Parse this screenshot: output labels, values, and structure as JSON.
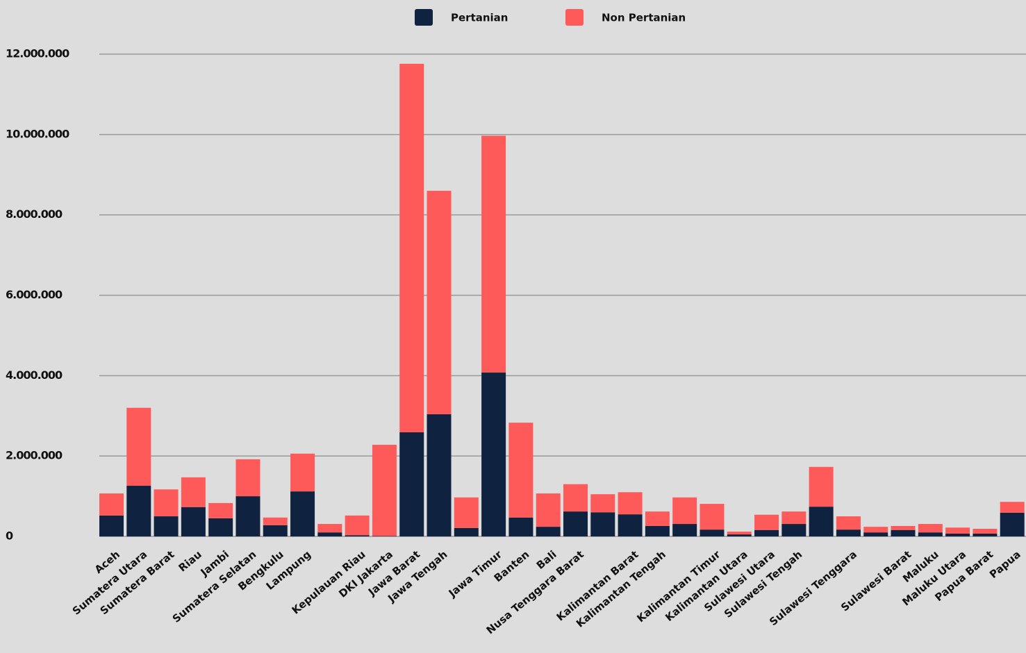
{
  "chart_data": {
    "type": "stacked_bar",
    "categories": [
      "Aceh",
      "Sumatera Utara",
      "Sumatera Barat",
      "Riau",
      "Jambi",
      "Sumatera Selatan",
      "Bengkulu",
      "Lampung",
      null,
      "Kepulauan Riau",
      "DKI Jakarta",
      "Jawa Barat",
      "Jawa Tengah",
      null,
      "Jawa Timur",
      "Banten",
      "Bali",
      "Nusa Tenggara Barat",
      null,
      "Kalimantan Barat",
      "Kalimantan Tengah",
      null,
      "Kalimantan Timur",
      "Kalimantan Utara",
      "Sulawesi Utara",
      "Sulawesi Tengah",
      null,
      "Sulawesi Tenggara",
      null,
      "Sulawesi Barat",
      "Maluku",
      "Maluku Utara",
      "Papua Barat",
      "Papua"
    ],
    "series": [
      {
        "name": "Pertanian",
        "color": "#0f2240",
        "values": [
          520000,
          1260000,
          500000,
          730000,
          450000,
          1000000,
          280000,
          1120000,
          100000,
          30000,
          10000,
          2590000,
          3040000,
          210000,
          4080000,
          470000,
          240000,
          620000,
          600000,
          550000,
          260000,
          310000,
          170000,
          50000,
          160000,
          310000,
          740000,
          170000,
          100000,
          160000,
          100000,
          70000,
          70000,
          590000
        ]
      },
      {
        "name": "Non Pertanian",
        "color": "#ff5a5a",
        "values": [
          550000,
          1940000,
          670000,
          740000,
          380000,
          920000,
          190000,
          940000,
          210000,
          490000,
          2270000,
          9170000,
          5560000,
          760000,
          5890000,
          2360000,
          830000,
          680000,
          450000,
          550000,
          360000,
          660000,
          640000,
          70000,
          380000,
          310000,
          990000,
          330000,
          140000,
          100000,
          210000,
          150000,
          120000,
          270000
        ]
      }
    ],
    "ylim": [
      0,
      12000000
    ],
    "yticks": [
      0,
      {
        "value": 2000000,
        "label": "2.000.000"
      },
      {
        "value": 4000000,
        "label": "4.000.000"
      },
      {
        "value": 6000000,
        "label": "6.000.000"
      },
      {
        "value": 8000000,
        "label": "8.000.000"
      },
      {
        "value": 10000000,
        "label": "10.000.000"
      },
      {
        "value": 12000000,
        "label": "12.000.000"
      }
    ],
    "grid": true
  }
}
